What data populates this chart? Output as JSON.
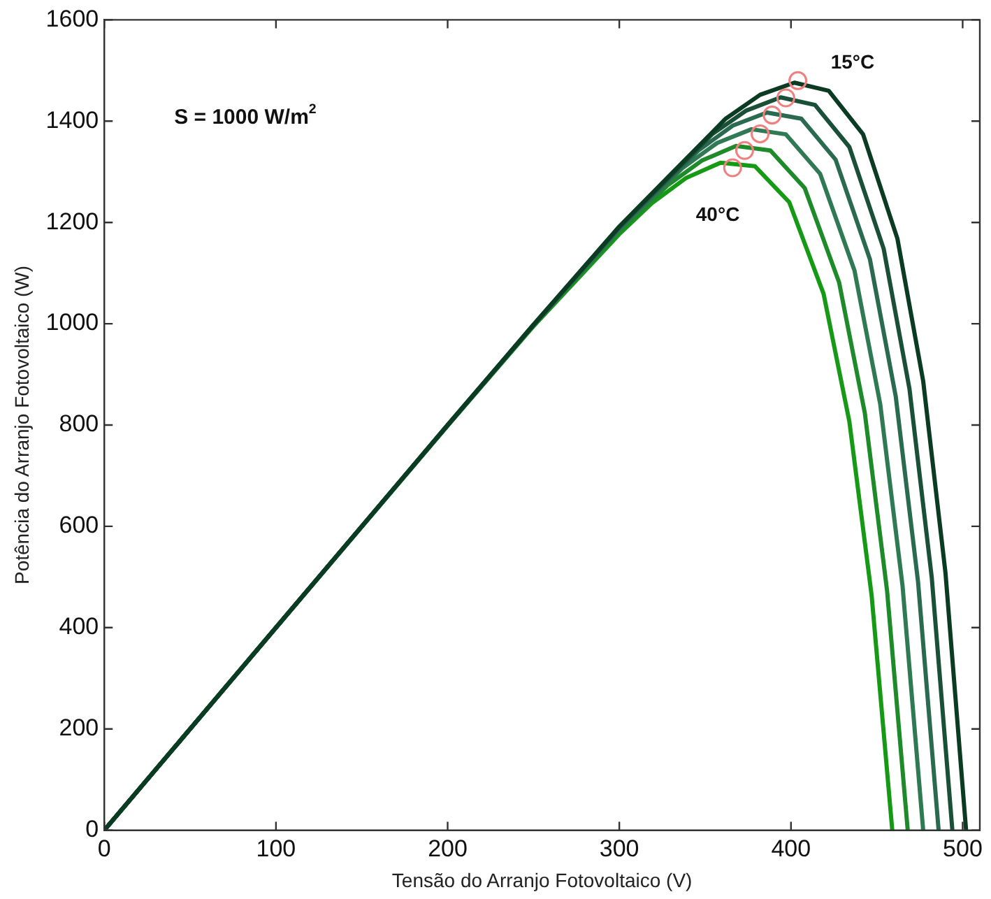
{
  "chart_data": {
    "type": "line",
    "xlabel": "Tensão do Arranjo Fotovoltaico (V)",
    "ylabel": "Potência do Arranjo Fotovoltaico (W)",
    "annotations": [
      "S = 1000 W/m$^{2}$"
    ],
    "xlim": [
      0,
      510
    ],
    "xticks": [
      0,
      100,
      200,
      300,
      400,
      500
    ],
    "ylim": [
      0,
      1600
    ],
    "yticks": [
      0,
      200,
      400,
      600,
      800,
      1000,
      1200,
      1400,
      1600
    ],
    "grid": false,
    "legend": false,
    "marker": "none",
    "line_style": "solid",
    "series": [
      {
        "name": "15°C",
        "color": "#0b3b22",
        "x": [
          0,
          100,
          200,
          250,
          300,
          362,
          382,
          402,
          422,
          442,
          462,
          477,
          490,
          502
        ],
        "values": [
          0,
          400,
          800,
          998,
          1192,
          1405,
          1452,
          1476,
          1460,
          1374,
          1168,
          887,
          508,
          0
        ]
      },
      {
        "color": "#1a5038",
        "x": [
          0,
          100,
          200,
          250,
          300,
          354,
          374,
          394,
          414,
          434,
          454,
          469,
          482,
          494
        ],
        "values": [
          0,
          400,
          800,
          998,
          1191,
          1374,
          1421,
          1447,
          1432,
          1349,
          1148,
          872,
          499,
          0
        ]
      },
      {
        "color": "#2a6a50",
        "x": [
          0,
          100,
          200,
          250,
          300,
          346,
          366,
          386,
          406,
          426,
          446,
          461,
          474,
          486
        ],
        "values": [
          0,
          400,
          800,
          997,
          1188,
          1342,
          1391,
          1417,
          1405,
          1324,
          1127,
          857,
          491,
          0
        ]
      },
      {
        "color": "#2f7a55",
        "x": [
          0,
          100,
          200,
          250,
          300,
          337,
          357,
          377,
          397,
          417,
          437,
          452,
          465,
          477
        ],
        "values": [
          0,
          400,
          799,
          997,
          1186,
          1308,
          1357,
          1384,
          1374,
          1296,
          1105,
          841,
          482,
          0
        ]
      },
      {
        "color": "#1f8a2a",
        "x": [
          0,
          100,
          200,
          250,
          300,
          328,
          348,
          368,
          388,
          408,
          428,
          443,
          456,
          468
        ],
        "values": [
          0,
          400,
          799,
          996,
          1182,
          1273,
          1322,
          1351,
          1342,
          1268,
          1082,
          824,
          472,
          0
        ]
      },
      {
        "name": "40°C",
        "color": "#169a16",
        "x": [
          0,
          100,
          200,
          250,
          300,
          319,
          339,
          359,
          379,
          399,
          419,
          434,
          447,
          459
        ],
        "values": [
          0,
          400,
          799,
          995,
          1177,
          1238,
          1288,
          1318,
          1311,
          1240,
          1059,
          807,
          463,
          0
        ]
      },
      {
        "type": "scatter",
        "marker": "circle",
        "color": "#f08080",
        "x": [
          404,
          397,
          389,
          382,
          373,
          366
        ],
        "values": [
          1480,
          1446,
          1412,
          1375,
          1342,
          1308
        ]
      }
    ]
  }
}
